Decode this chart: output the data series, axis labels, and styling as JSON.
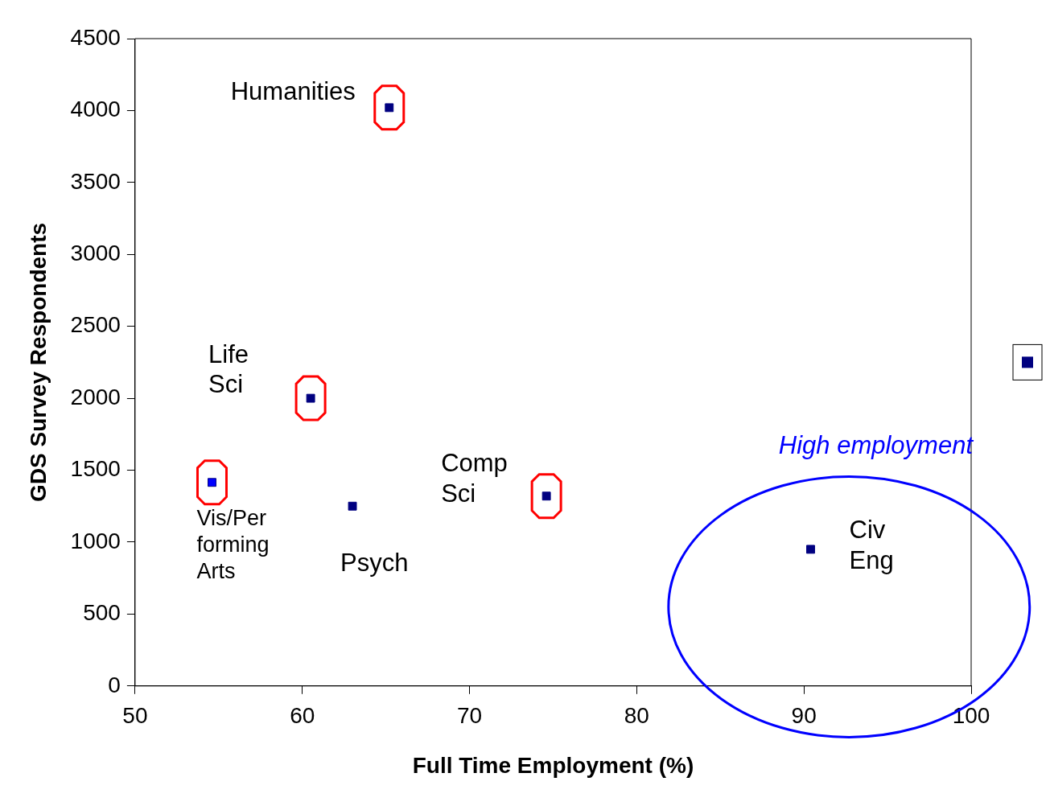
{
  "chart_data": {
    "type": "scatter",
    "xlabel": "Full Time Employment (%)",
    "ylabel": "GDS Survey Respondents",
    "x": [
      65.2,
      60.5,
      54.6,
      63.0,
      74.6,
      90.4
    ],
    "series": [
      {
        "color": "#000080",
        "colors": [
          "#000080",
          "#000080",
          "#0000ff",
          "#000080",
          "#000080",
          "#000080"
        ],
        "values": [
          4020,
          2000,
          1415,
          1250,
          1320,
          950
        ]
      }
    ],
    "xlim": [
      50,
      100
    ],
    "xticks": [
      50,
      60,
      70,
      80,
      90,
      100
    ],
    "ylim": [
      0,
      4500
    ],
    "yticks": [
      0,
      500,
      1000,
      1500,
      2000,
      2500,
      3000,
      3500,
      4000,
      4500
    ],
    "grid": false,
    "marker": "square",
    "annotations": [
      {
        "text": "Humanities",
        "x": 65.2,
        "y": 4020
      },
      {
        "text": "Life\nSci",
        "x": 60.5,
        "y": 2000
      },
      {
        "text": "Vis/Per\nforming\nArts",
        "x": 54.6,
        "y": 1415
      },
      {
        "text": "Psych",
        "x": 63.0,
        "y": 1250
      },
      {
        "text": "Comp\nSci",
        "x": 74.6,
        "y": 1320
      },
      {
        "text": "Civ\nEng",
        "x": 90.4,
        "y": 950
      },
      "High employment"
    ]
  }
}
